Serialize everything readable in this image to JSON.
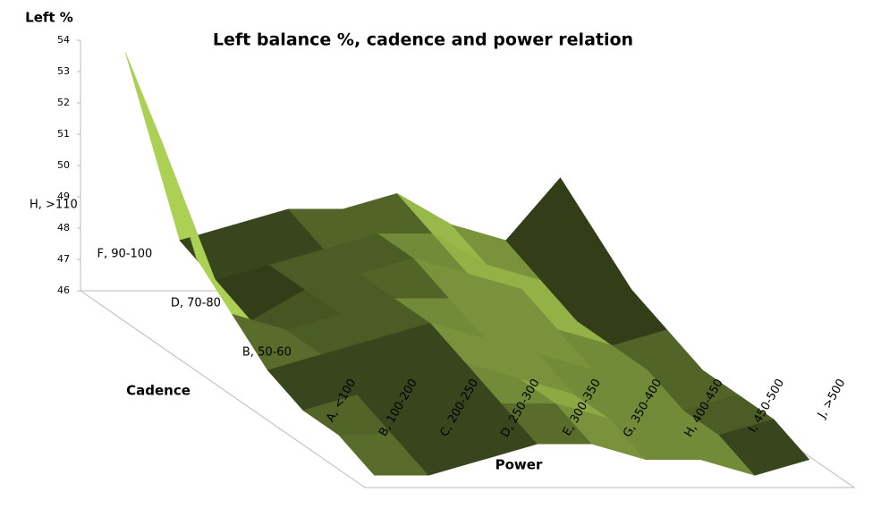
{
  "chart_data": {
    "type": "surface",
    "title": "Left balance %, cadence and power relation",
    "z_label": "Left %",
    "y_label": "Cadence",
    "x_label": "Power",
    "categories": [
      "A, <100",
      "B, 100-200",
      "C, 200-250",
      "D, 250-300",
      "E, 300-350",
      "G, 350-400",
      "H, 400-450",
      "I, 450-500",
      "J, >500"
    ],
    "depth_categories": [
      null,
      "B, 50-60",
      null,
      "D, 70-80",
      null,
      "F, 90-100",
      null,
      "H, >110"
    ],
    "series": [
      {
        "values": [
          46,
          46,
          46.5,
          47,
          47,
          46.5,
          46.5,
          46,
          46.5
        ]
      },
      {
        "values": [
          46.5,
          46.5,
          47,
          47.5,
          47.5,
          47,
          46.5,
          46.5,
          47
        ]
      },
      {
        "values": [
          46.5,
          47,
          47.5,
          48,
          47.5,
          47,
          47,
          46.5,
          47
        ]
      },
      {
        "values": [
          47,
          47.5,
          48,
          48.5,
          48,
          47.5,
          47,
          47,
          47
        ]
      },
      {
        "values": [
          48,
          47.5,
          48,
          48.5,
          48.5,
          48,
          47.5,
          47,
          47.5
        ]
      },
      {
        "values": [
          49,
          47,
          48,
          48.5,
          49,
          48.5,
          48,
          47,
          48
        ]
      },
      {
        "values": [
          52,
          47.5,
          48,
          48.5,
          49,
          49,
          48,
          47.5,
          49
        ]
      },
      {
        "values": [
          54,
          48,
          48.5,
          49,
          49,
          49.5,
          48.5,
          48,
          50
        ]
      }
    ],
    "color": "#7f9a3e",
    "zlim": [
      46,
      54
    ],
    "zticks": [
      46,
      47,
      48,
      49,
      50,
      51,
      52,
      53,
      54
    ]
  }
}
